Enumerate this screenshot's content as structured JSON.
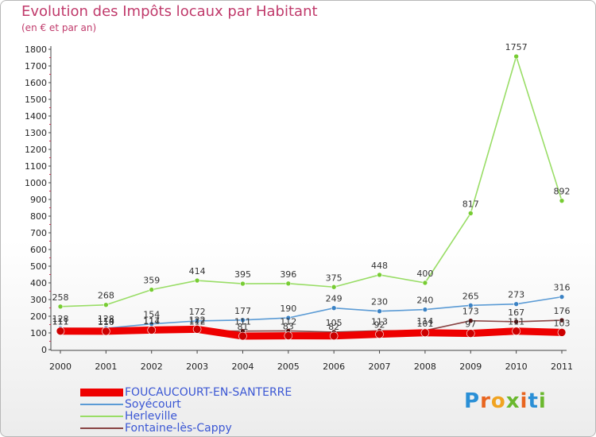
{
  "header": {
    "title": "Evolution des Impôts locaux par Habitant",
    "subtitle": "(en € et par an)"
  },
  "logo": {
    "text": "Proxiti",
    "letters": [
      "P",
      "r",
      "o",
      "x",
      "i",
      "t",
      "i"
    ]
  },
  "chart_data": {
    "type": "line",
    "title": "Evolution des Impôts locaux par Habitant",
    "subtitle": "(en € et par an)",
    "xlabel": "",
    "ylabel": "",
    "x": [
      "2000",
      "2001",
      "2002",
      "2003",
      "2004",
      "2005",
      "2006",
      "2007",
      "2008",
      "2009",
      "2010",
      "2011"
    ],
    "ylim": [
      0,
      1800
    ],
    "yticks": [
      0,
      100,
      200,
      300,
      400,
      500,
      600,
      700,
      800,
      900,
      1000,
      1100,
      1200,
      1300,
      1400,
      1500,
      1600,
      1700,
      1800
    ],
    "grid": false,
    "legend_position": "bottom-left",
    "series": [
      {
        "name": "FOUCAUCOURT-EN-SANTERRE",
        "color": "#ee0000",
        "values": [
          111,
          110,
          117,
          122,
          81,
          83,
          82,
          92,
          101,
          97,
          111,
          103
        ]
      },
      {
        "name": "Soyécourt",
        "color": "#5b9bd5",
        "values": [
          128,
          128,
          154,
          172,
          177,
          190,
          249,
          230,
          240,
          265,
          273,
          316
        ]
      },
      {
        "name": "Herleville",
        "color": "#99dd66",
        "values": [
          258,
          268,
          359,
          414,
          395,
          396,
          375,
          448,
          400,
          817,
          1757,
          892
        ]
      },
      {
        "name": "Fontaine-lès-Cappy",
        "color": "#884444",
        "values": [
          111,
          114,
          114,
          112,
          111,
          112,
          105,
          113,
          114,
          173,
          167,
          176
        ]
      }
    ]
  }
}
